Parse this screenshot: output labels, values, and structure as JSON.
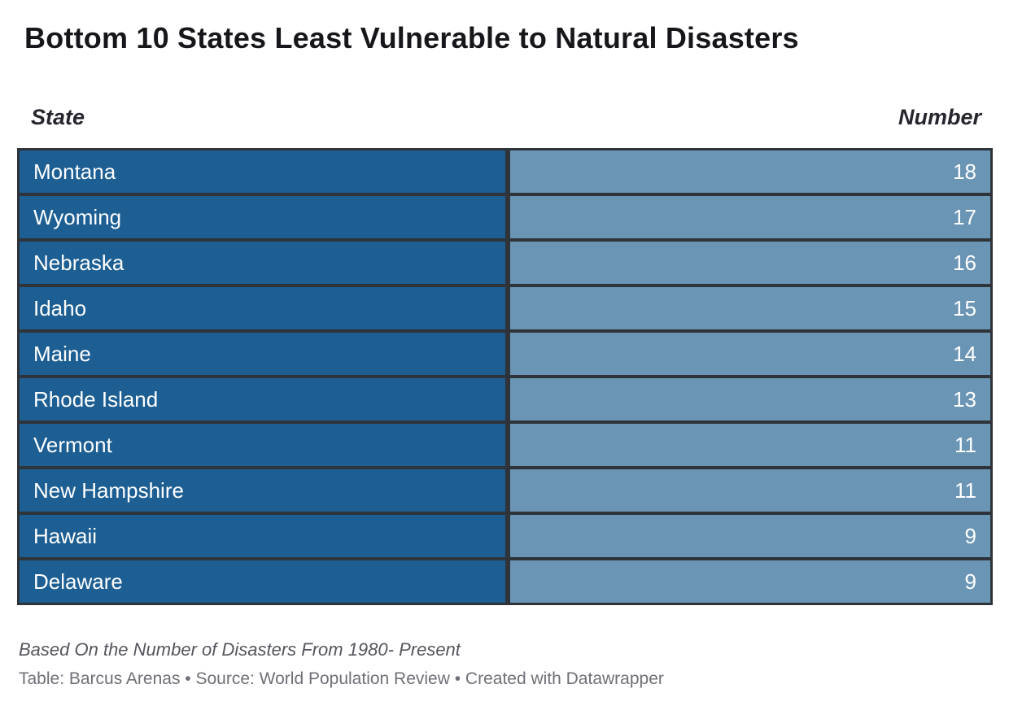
{
  "title": "Bottom 10 States Least Vulnerable to Natural Disasters",
  "table": {
    "header_state": "State",
    "header_number": "Number"
  },
  "footer": {
    "note": "Based On the Number of Disasters From 1980- Present",
    "attribution": "Table: Barcus Arenas • Source: World Population Review • Created with Datawrapper"
  },
  "colors": {
    "state_cell_bg": "#1d5e93",
    "number_cell_bg": "#6b95b5",
    "table_border": "#2e3439",
    "cell_text": "#ffffff",
    "title_text": "#17171b",
    "header_text": "#26262e",
    "note_text": "#55555d",
    "attribution_text": "#6f6f77"
  },
  "chart_data": {
    "type": "table",
    "title": "Bottom 10 States Least Vulnerable to Natural Disasters",
    "columns": [
      "State",
      "Number"
    ],
    "rows": [
      {
        "state": "Montana",
        "number": 18
      },
      {
        "state": "Wyoming",
        "number": 17
      },
      {
        "state": "Nebraska",
        "number": 16
      },
      {
        "state": "Idaho",
        "number": 15
      },
      {
        "state": "Maine",
        "number": 14
      },
      {
        "state": "Rhode Island",
        "number": 13
      },
      {
        "state": "Vermont",
        "number": 11
      },
      {
        "state": "New Hampshire",
        "number": 11
      },
      {
        "state": "Hawaii",
        "number": 9
      },
      {
        "state": "Delaware",
        "number": 9
      }
    ],
    "note": "Based On the Number of Disasters From 1980- Present",
    "attribution": "Table: Barcus Arenas • Source: World Population Review • Created with Datawrapper"
  }
}
